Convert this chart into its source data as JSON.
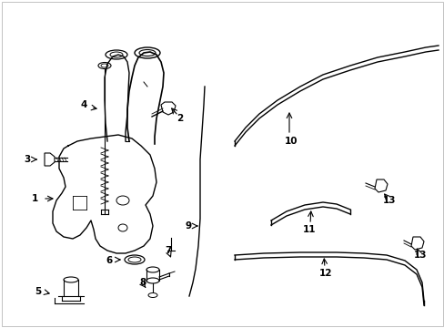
{
  "background_color": "#ffffff",
  "line_color": "#000000",
  "figsize": [
    4.89,
    3.6
  ],
  "dpi": 100,
  "border_color": "#cccccc",
  "lw": 1.0,
  "lw_thin": 0.6,
  "lw_thick": 1.2,
  "fontsize": 7.5
}
